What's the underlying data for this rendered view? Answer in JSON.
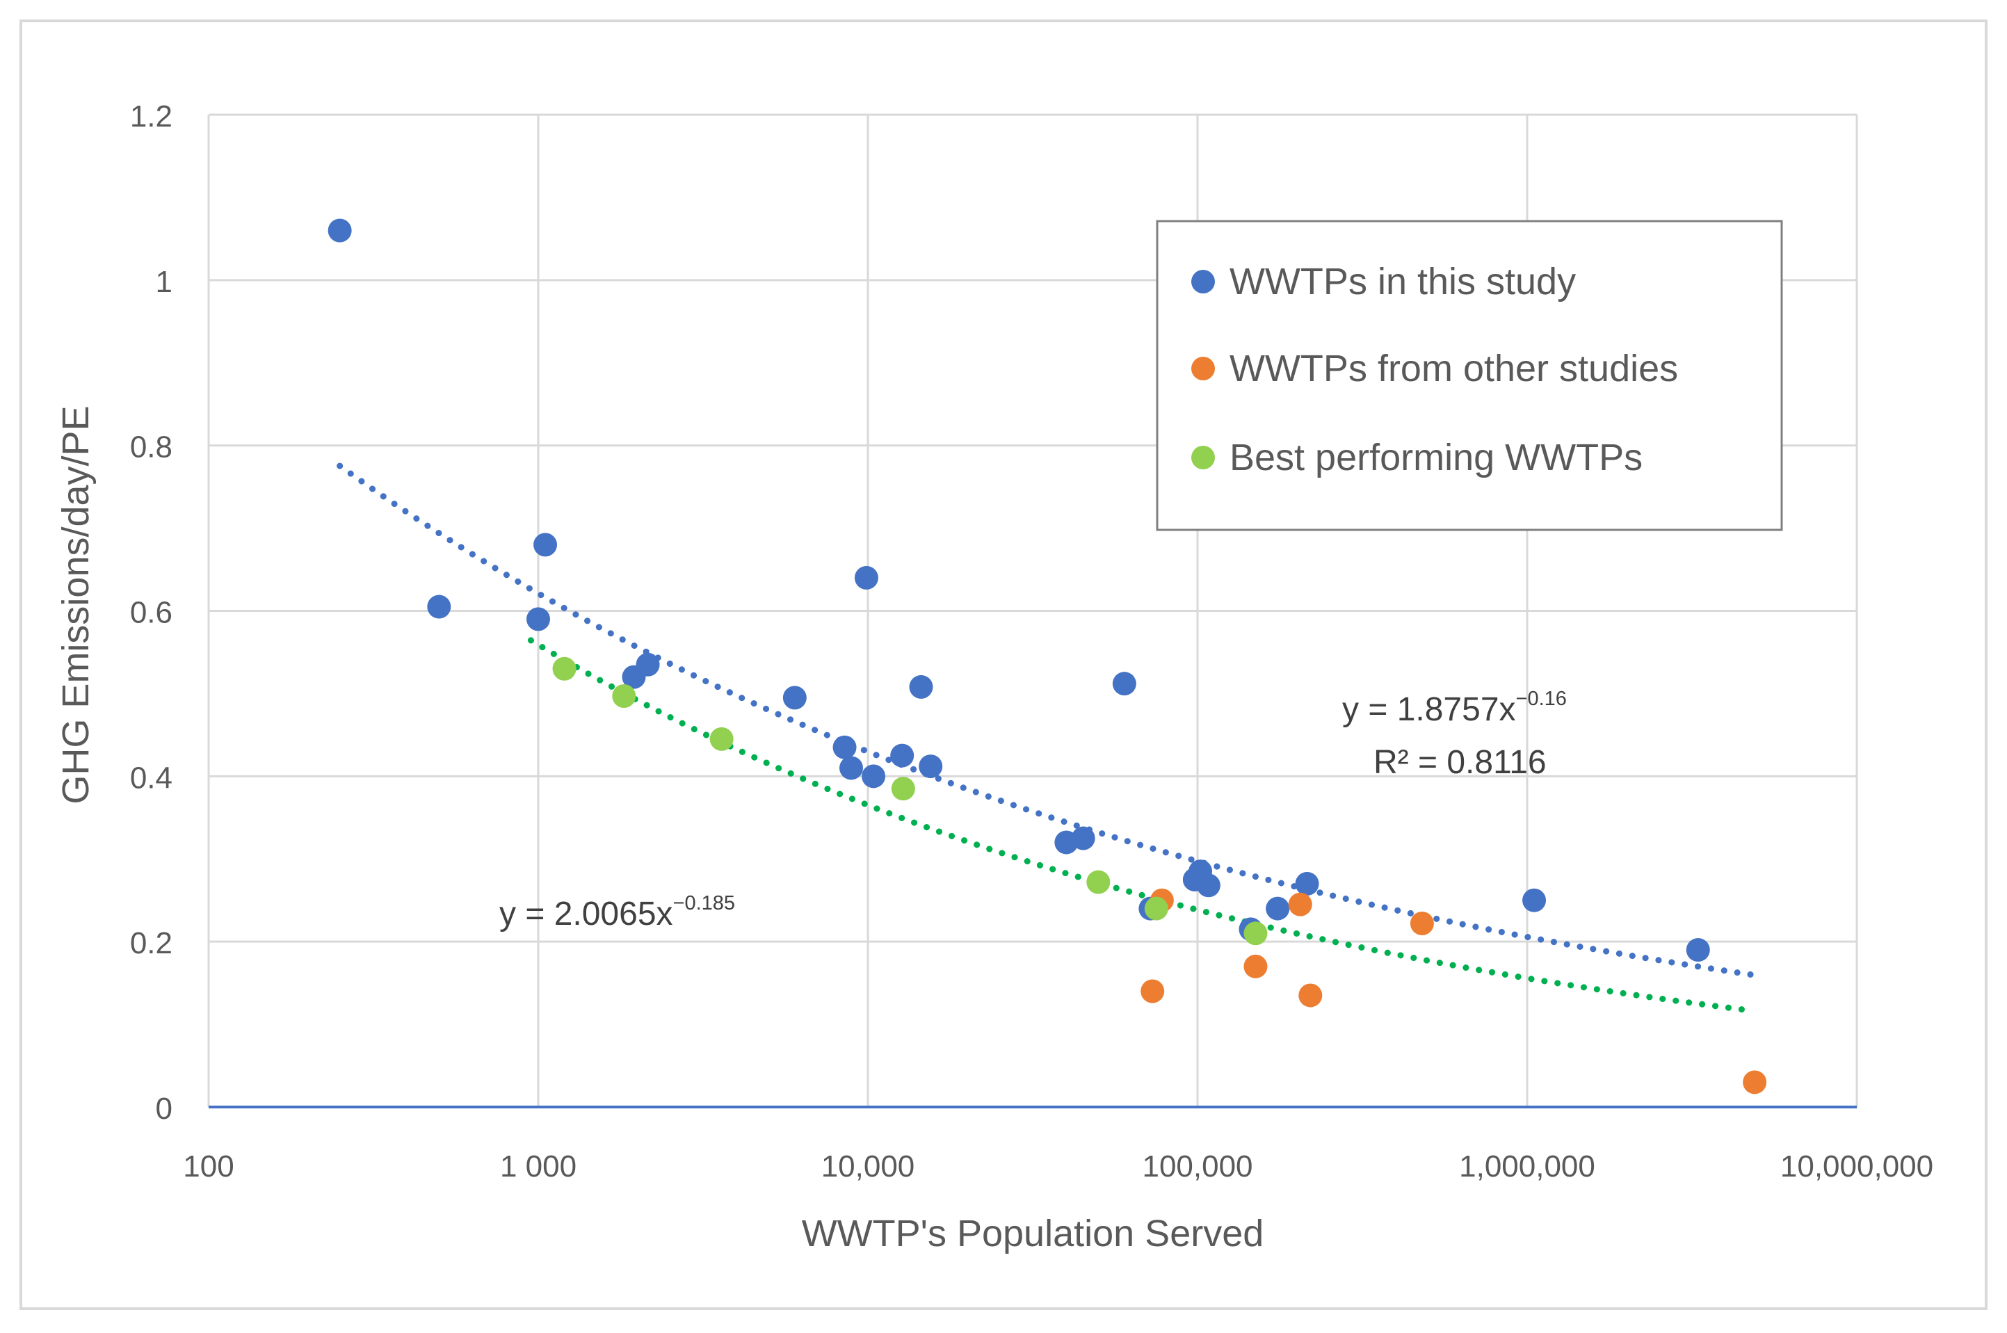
{
  "chart_data": {
    "type": "scatter",
    "title": "",
    "xlabel": "WWTP's Population Served",
    "ylabel": "GHG Emissions/day/PE",
    "xscale": "log",
    "xlim": [
      100,
      10000000
    ],
    "ylim": [
      0,
      1.2
    ],
    "grid": true,
    "legend_position": "top-right",
    "x_tick_labels": [
      {
        "value": 100,
        "label": "100"
      },
      {
        "value": 1000,
        "label": "1 000"
      },
      {
        "value": 10000,
        "label": "10,000"
      },
      {
        "value": 100000,
        "label": "100,000"
      },
      {
        "value": 1000000,
        "label": "1,000,000"
      },
      {
        "value": 10000000,
        "label": "10,000,000"
      }
    ],
    "y_tick_labels": [
      {
        "value": 0,
        "label": "0"
      },
      {
        "value": 0.2,
        "label": "0.2"
      },
      {
        "value": 0.4,
        "label": "0.4"
      },
      {
        "value": 0.6,
        "label": "0.6"
      },
      {
        "value": 0.8,
        "label": "0.8"
      },
      {
        "value": 1,
        "label": "1"
      },
      {
        "value": 1.2,
        "label": "1.2"
      }
    ],
    "series": [
      {
        "name": "WWTPs in this study",
        "color": "#4472C4",
        "points": [
          {
            "x": 250,
            "y": 1.06
          },
          {
            "x": 500,
            "y": 0.605
          },
          {
            "x": 1000,
            "y": 0.59
          },
          {
            "x": 1050,
            "y": 0.68
          },
          {
            "x": 1950,
            "y": 0.52
          },
          {
            "x": 2150,
            "y": 0.535
          },
          {
            "x": 6000,
            "y": 0.495
          },
          {
            "x": 8500,
            "y": 0.435
          },
          {
            "x": 8900,
            "y": 0.41
          },
          {
            "x": 9900,
            "y": 0.64
          },
          {
            "x": 10400,
            "y": 0.4
          },
          {
            "x": 12700,
            "y": 0.425
          },
          {
            "x": 14500,
            "y": 0.508
          },
          {
            "x": 15500,
            "y": 0.412
          },
          {
            "x": 40000,
            "y": 0.32
          },
          {
            "x": 45000,
            "y": 0.325
          },
          {
            "x": 60000,
            "y": 0.512
          },
          {
            "x": 72000,
            "y": 0.24
          },
          {
            "x": 98000,
            "y": 0.275
          },
          {
            "x": 102000,
            "y": 0.285
          },
          {
            "x": 108000,
            "y": 0.268
          },
          {
            "x": 145000,
            "y": 0.215
          },
          {
            "x": 175000,
            "y": 0.24
          },
          {
            "x": 215000,
            "y": 0.27
          },
          {
            "x": 1050000,
            "y": 0.25
          },
          {
            "x": 3300000,
            "y": 0.19
          }
        ]
      },
      {
        "name": "WWTPs from other studies",
        "color": "#ED7D31",
        "points": [
          {
            "x": 73000,
            "y": 0.14
          },
          {
            "x": 78000,
            "y": 0.25
          },
          {
            "x": 150000,
            "y": 0.17
          },
          {
            "x": 205000,
            "y": 0.245
          },
          {
            "x": 220000,
            "y": 0.135
          },
          {
            "x": 480000,
            "y": 0.222
          },
          {
            "x": 4900000,
            "y": 0.03
          }
        ]
      },
      {
        "name": "Best performing WWTPs",
        "color": "#92D050",
        "points": [
          {
            "x": 1200,
            "y": 0.53
          },
          {
            "x": 1820,
            "y": 0.497
          },
          {
            "x": 3600,
            "y": 0.445
          },
          {
            "x": 12800,
            "y": 0.385
          },
          {
            "x": 50000,
            "y": 0.272
          },
          {
            "x": 75000,
            "y": 0.24
          },
          {
            "x": 150000,
            "y": 0.21
          }
        ]
      }
    ],
    "trendlines": [
      {
        "name": "WWTPs in this study trendline",
        "type": "power",
        "color": "#4472C4",
        "style": "dotted",
        "coefficient": 1.8757,
        "exponent": -0.16,
        "x_range": [
          250,
          4800000
        ],
        "equation_base": "y = 1.8757x",
        "equation_exponent": "−0.16",
        "r_squared_label": "R² = 0.8116"
      },
      {
        "name": "Best performing WWTPs trendline",
        "type": "power",
        "color": "#00B050",
        "style": "dotted",
        "coefficient": 2.0065,
        "exponent": -0.185,
        "x_range": [
          950,
          4800000
        ],
        "equation_base": "y = 2.0065x",
        "equation_exponent": "−0.185"
      }
    ],
    "colors": {
      "axis_line": "#4472C4",
      "grid": "#D9D9D9",
      "frame": "#D9D9D9",
      "text": "#595959",
      "legend_border": "#808080"
    }
  }
}
